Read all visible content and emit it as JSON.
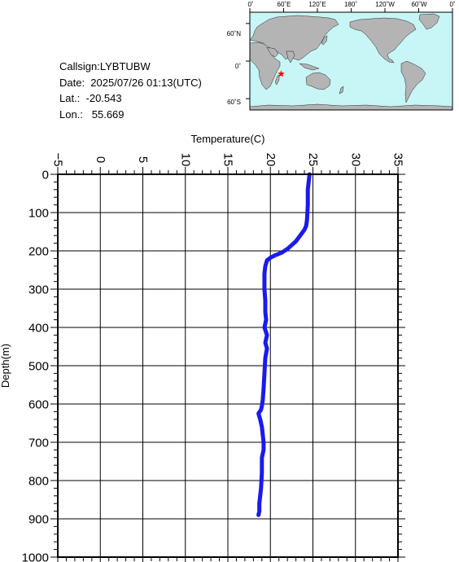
{
  "info": {
    "callsign": "Callsign:LYBTUBW",
    "date": "Date:  2025/07/26 01:13(UTC)",
    "lat": "Lat.:  -20.543",
    "lon": "Lon.:   55.669"
  },
  "map": {
    "top_labels": [
      "0˚",
      "60˚E",
      "120˚E",
      "180˚",
      "120˚W",
      "60˚W",
      "0˚"
    ],
    "side_labels": [
      "60˚N",
      "0˚",
      "60˚S"
    ],
    "ocean_color": "#c8f5f5",
    "land_color": "#b4b4b4",
    "marker_color": "#ff0000",
    "marker_lat": -20.543,
    "marker_lon": 55.669
  },
  "chart_data": {
    "type": "line",
    "xlabel": "Temperature(C)",
    "ylabel": "Depth(m)",
    "xlim": [
      -5,
      35
    ],
    "ylim": [
      0,
      1000
    ],
    "y_inverted": true,
    "x_ticks": [
      -5,
      0,
      5,
      10,
      15,
      20,
      25,
      30,
      35
    ],
    "y_ticks": [
      0,
      100,
      200,
      300,
      400,
      500,
      600,
      700,
      800,
      900,
      1000
    ],
    "grid": true,
    "line_color": "#1a1aee",
    "series": [
      {
        "x": [
          24.6,
          24.5,
          24.4,
          24.4,
          24.3,
          24.2,
          24.0,
          23.5,
          23.0,
          22.5,
          22.0,
          21.3,
          20.5,
          20.0,
          19.6,
          19.4,
          19.3,
          19.3,
          19.4,
          19.4,
          19.5,
          19.3,
          19.6,
          19.4,
          19.6,
          19.4,
          19.3,
          19.2,
          19.1,
          19.0,
          18.9,
          18.6,
          18.8,
          19.0,
          19.1,
          19.2,
          19.2,
          19.0,
          19.0,
          18.9,
          18.8,
          18.7,
          18.7,
          18.6
        ],
        "y": [
          0,
          20,
          40,
          80,
          120,
          135,
          145,
          160,
          175,
          185,
          195,
          205,
          212,
          218,
          225,
          240,
          260,
          300,
          330,
          360,
          380,
          400,
          420,
          440,
          455,
          480,
          520,
          560,
          590,
          605,
          615,
          625,
          640,
          660,
          680,
          700,
          720,
          740,
          780,
          820,
          840,
          860,
          880,
          890
        ]
      }
    ]
  }
}
